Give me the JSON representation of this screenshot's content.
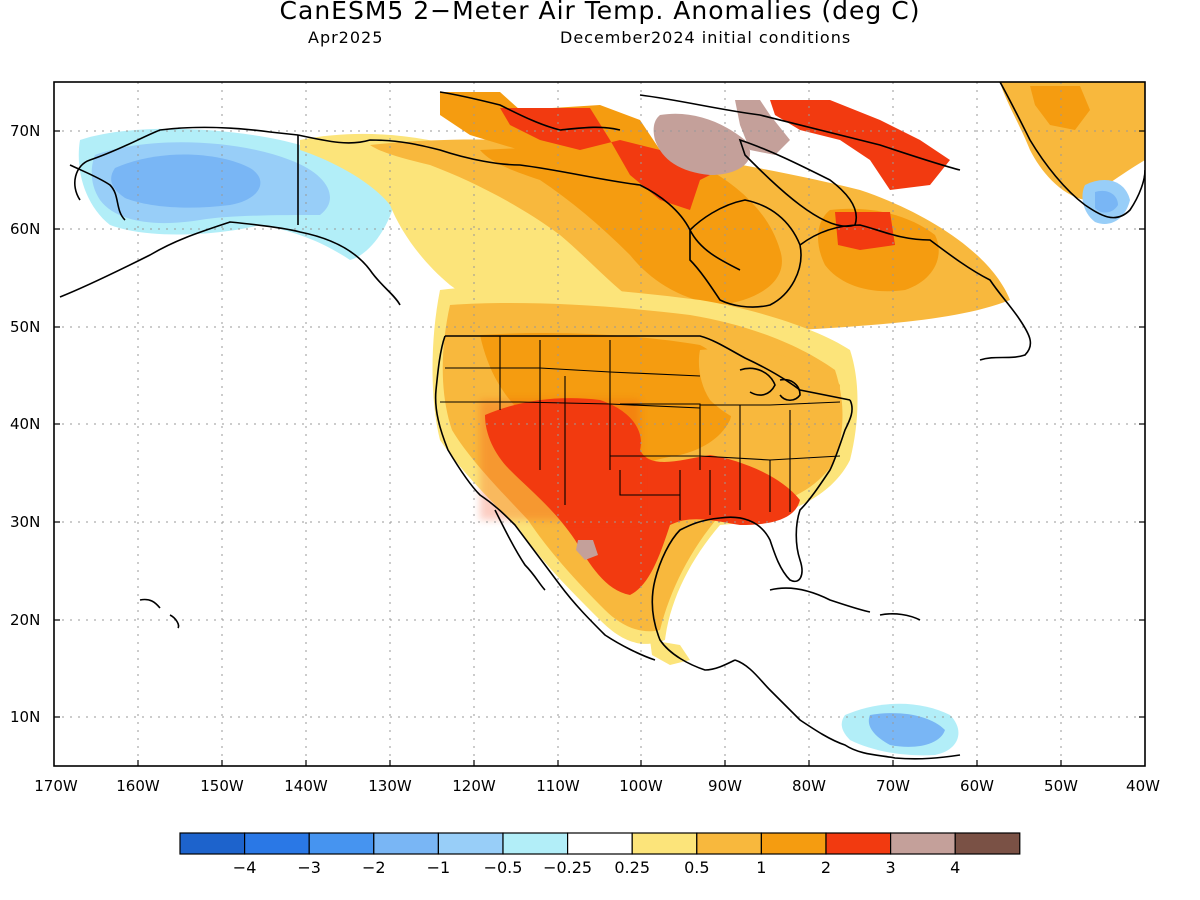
{
  "header": {
    "title": "CanESM5 2−Meter Air Temp. Anomalies (deg C)",
    "valid_month": "Apr2025",
    "init_conditions": "December2024 initial conditions"
  },
  "axes": {
    "lat_labels": [
      "70N",
      "60N",
      "50N",
      "40N",
      "30N",
      "20N",
      "10N"
    ],
    "lon_labels": [
      "170W",
      "160W",
      "150W",
      "140W",
      "130W",
      "120W",
      "110W",
      "100W",
      "90W",
      "80W",
      "70W",
      "60W",
      "50W",
      "40W"
    ]
  },
  "colorbar": {
    "colors": [
      "#1d63cc",
      "#2a78e6",
      "#4694f0",
      "#79b6f5",
      "#98cef8",
      "#b2eef8",
      "#ffffff",
      "#fce47a",
      "#f8b83d",
      "#f59c10",
      "#f23a10",
      "#c4a09a",
      "#7a5145"
    ],
    "labels": [
      "−4",
      "−3",
      "−2",
      "−1",
      "−0.5",
      "−0.25",
      "0.25",
      "0.5",
      "1",
      "2",
      "3",
      "4"
    ]
  },
  "colors": {
    "land_outline": "#000000",
    "grid": "#999999"
  }
}
